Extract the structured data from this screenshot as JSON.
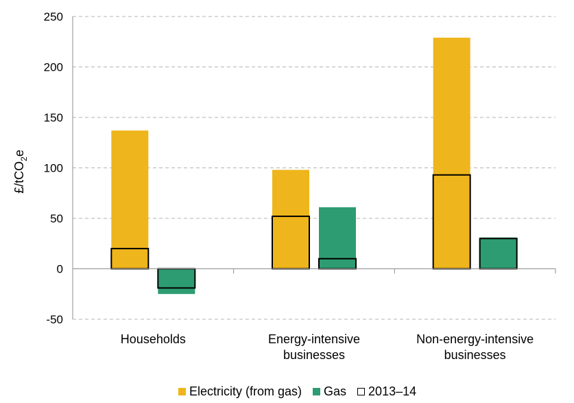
{
  "chart_data": {
    "type": "bar",
    "title": "",
    "xlabel": "",
    "ylabel": {
      "prefix": "£/tCO",
      "subscript": "2",
      "suffix": "e"
    },
    "ylim": [
      -50,
      250
    ],
    "yticks": [
      -50,
      0,
      50,
      100,
      150,
      200,
      250
    ],
    "grid": "horizontal-dashed",
    "categories": [
      [
        "Households"
      ],
      [
        "Energy-intensive",
        "businesses"
      ],
      [
        "Non-energy-intensive",
        "businesses"
      ]
    ],
    "series": [
      {
        "name": "Electricity (from gas)",
        "color": "#EEB51C",
        "values": [
          137,
          98,
          229
        ]
      },
      {
        "name": "Gas",
        "color": "#2E9C72",
        "values": [
          -25,
          61,
          31
        ]
      }
    ],
    "outline_series": {
      "name": "2013–14",
      "values": [
        [
          20,
          -19
        ],
        [
          52,
          10
        ],
        [
          93,
          30
        ]
      ]
    },
    "legend_position": "bottom"
  }
}
